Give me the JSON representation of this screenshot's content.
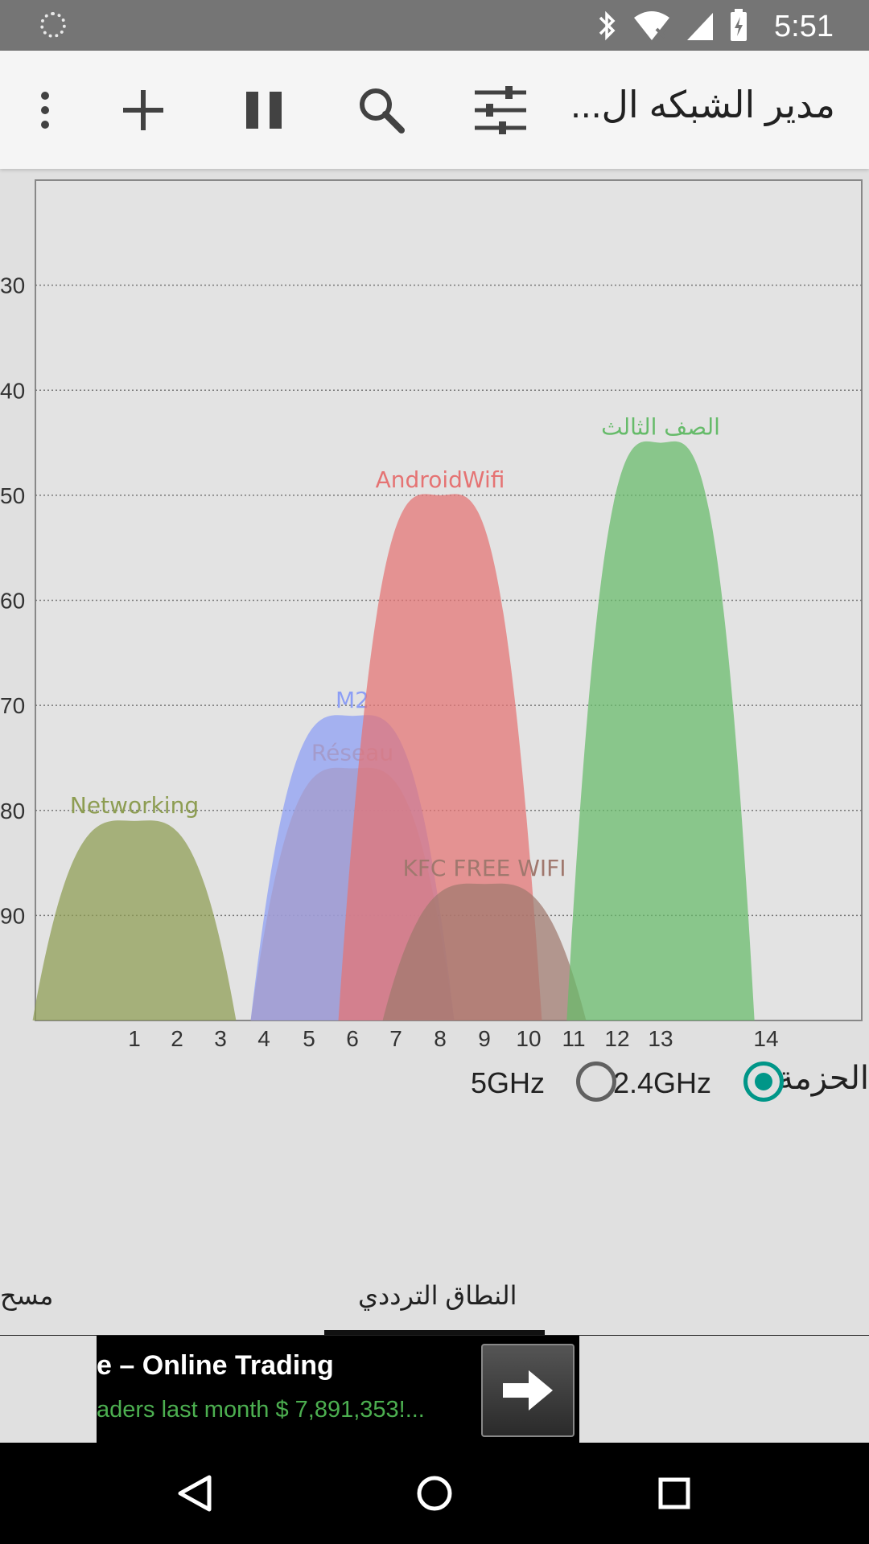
{
  "status_bar": {
    "time": "5:51",
    "icons": [
      "loading-spinner-icon",
      "bluetooth-icon",
      "wifi-icon",
      "signal-icon",
      "battery-icon"
    ]
  },
  "app_bar": {
    "title": "مدير الشبكه ال...",
    "actions": [
      "more-vert-icon",
      "add-icon",
      "pause-icon",
      "search-icon",
      "tune-icon"
    ]
  },
  "chart_data": {
    "type": "area",
    "ylim": [
      -100,
      -20
    ],
    "y_ticks": [
      "30",
      "40",
      "50",
      "60",
      "70",
      "80",
      "90"
    ],
    "x_ticks": [
      "1",
      "2",
      "3",
      "4",
      "5",
      "6",
      "7",
      "8",
      "9",
      "10",
      "11",
      "12",
      "13",
      "14"
    ],
    "grid": true,
    "series": [
      {
        "name": "Networking",
        "channel": 1,
        "signal": -81,
        "color": "#8d9d52"
      },
      {
        "name": "Réseau",
        "channel": 6,
        "signal": -76,
        "color": "#e0925e"
      },
      {
        "name": "M2",
        "channel": 6,
        "signal": -71,
        "color": "#8c9ef5"
      },
      {
        "name": "AndroidWifi",
        "channel": 8,
        "signal": -50,
        "color": "#e57373"
      },
      {
        "name": "KFC FREE WIFI",
        "channel": 9,
        "signal": -87,
        "color": "#a0786e"
      },
      {
        "name": "الصف الثالث",
        "channel": 13,
        "signal": -45,
        "color": "#66bb6a"
      }
    ]
  },
  "band": {
    "label": "الحزمة",
    "options": [
      {
        "label": "2.4GHz",
        "selected": true
      },
      {
        "label": "5GHz",
        "selected": false
      }
    ]
  },
  "tabs": {
    "left": "مسح",
    "center": "النطاق الترددي"
  },
  "ad": {
    "title": "e – Online Trading",
    "text": "aders last month $ 7,891,353!..."
  },
  "nav": [
    "back-icon",
    "home-icon",
    "recents-icon"
  ]
}
